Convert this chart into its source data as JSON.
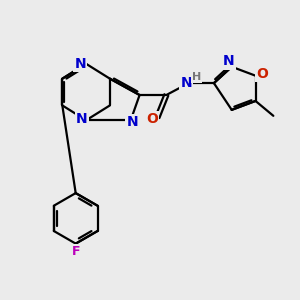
{
  "bg_color": "#ebebeb",
  "bond_color": "#000000",
  "bond_width": 1.6,
  "atom_colors": {
    "N": "#0000cc",
    "O": "#cc2200",
    "F": "#bb00bb",
    "H": "#777777",
    "C": "#000000"
  },
  "font_size": 9
}
